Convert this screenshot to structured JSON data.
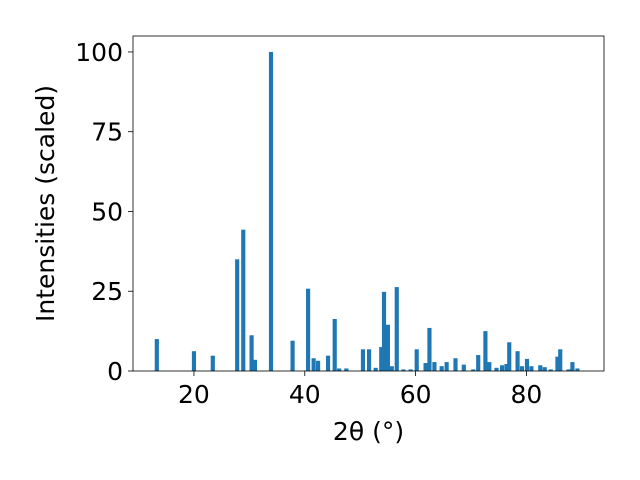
{
  "chart_data": {
    "type": "bar",
    "xlabel": "2θ (°)",
    "ylabel": "Intensities (scaled)",
    "xlim": [
      9,
      94
    ],
    "ylim": [
      0,
      105
    ],
    "xticks": [
      20,
      40,
      60,
      80
    ],
    "yticks": [
      0,
      25,
      50,
      75,
      100
    ],
    "bar_color": "#1f77b4",
    "grid": false,
    "x": [
      13.3,
      20.0,
      23.4,
      27.8,
      28.9,
      30.4,
      31.0,
      33.9,
      37.8,
      40.6,
      41.6,
      42.4,
      44.2,
      45.4,
      46.2,
      47.5,
      50.5,
      51.6,
      52.8,
      53.8,
      54.3,
      55.0,
      55.7,
      56.6,
      57.8,
      59.1,
      60.2,
      61.8,
      62.5,
      63.4,
      64.7,
      65.6,
      67.2,
      68.7,
      70.4,
      71.3,
      72.6,
      73.3,
      74.6,
      75.6,
      76.4,
      76.9,
      78.4,
      79.2,
      80.1,
      80.9,
      82.5,
      83.3,
      84.4,
      85.6,
      86.1,
      87.6,
      88.3,
      89.2
    ],
    "values": [
      10.0,
      6.2,
      4.8,
      35.0,
      44.3,
      11.2,
      3.5,
      100.0,
      9.5,
      25.8,
      4.0,
      3.2,
      4.8,
      16.3,
      0.8,
      0.8,
      6.8,
      6.8,
      1.0,
      7.5,
      24.8,
      14.5,
      1.5,
      26.3,
      0.5,
      0.5,
      6.8,
      2.5,
      13.5,
      2.8,
      1.5,
      2.8,
      4.0,
      2.0,
      0.5,
      5.0,
      12.5,
      2.8,
      1.0,
      1.8,
      2.2,
      9.0,
      6.2,
      1.5,
      3.8,
      1.5,
      1.8,
      1.2,
      0.5,
      4.5,
      6.8,
      0.5,
      2.8,
      0.8
    ]
  }
}
